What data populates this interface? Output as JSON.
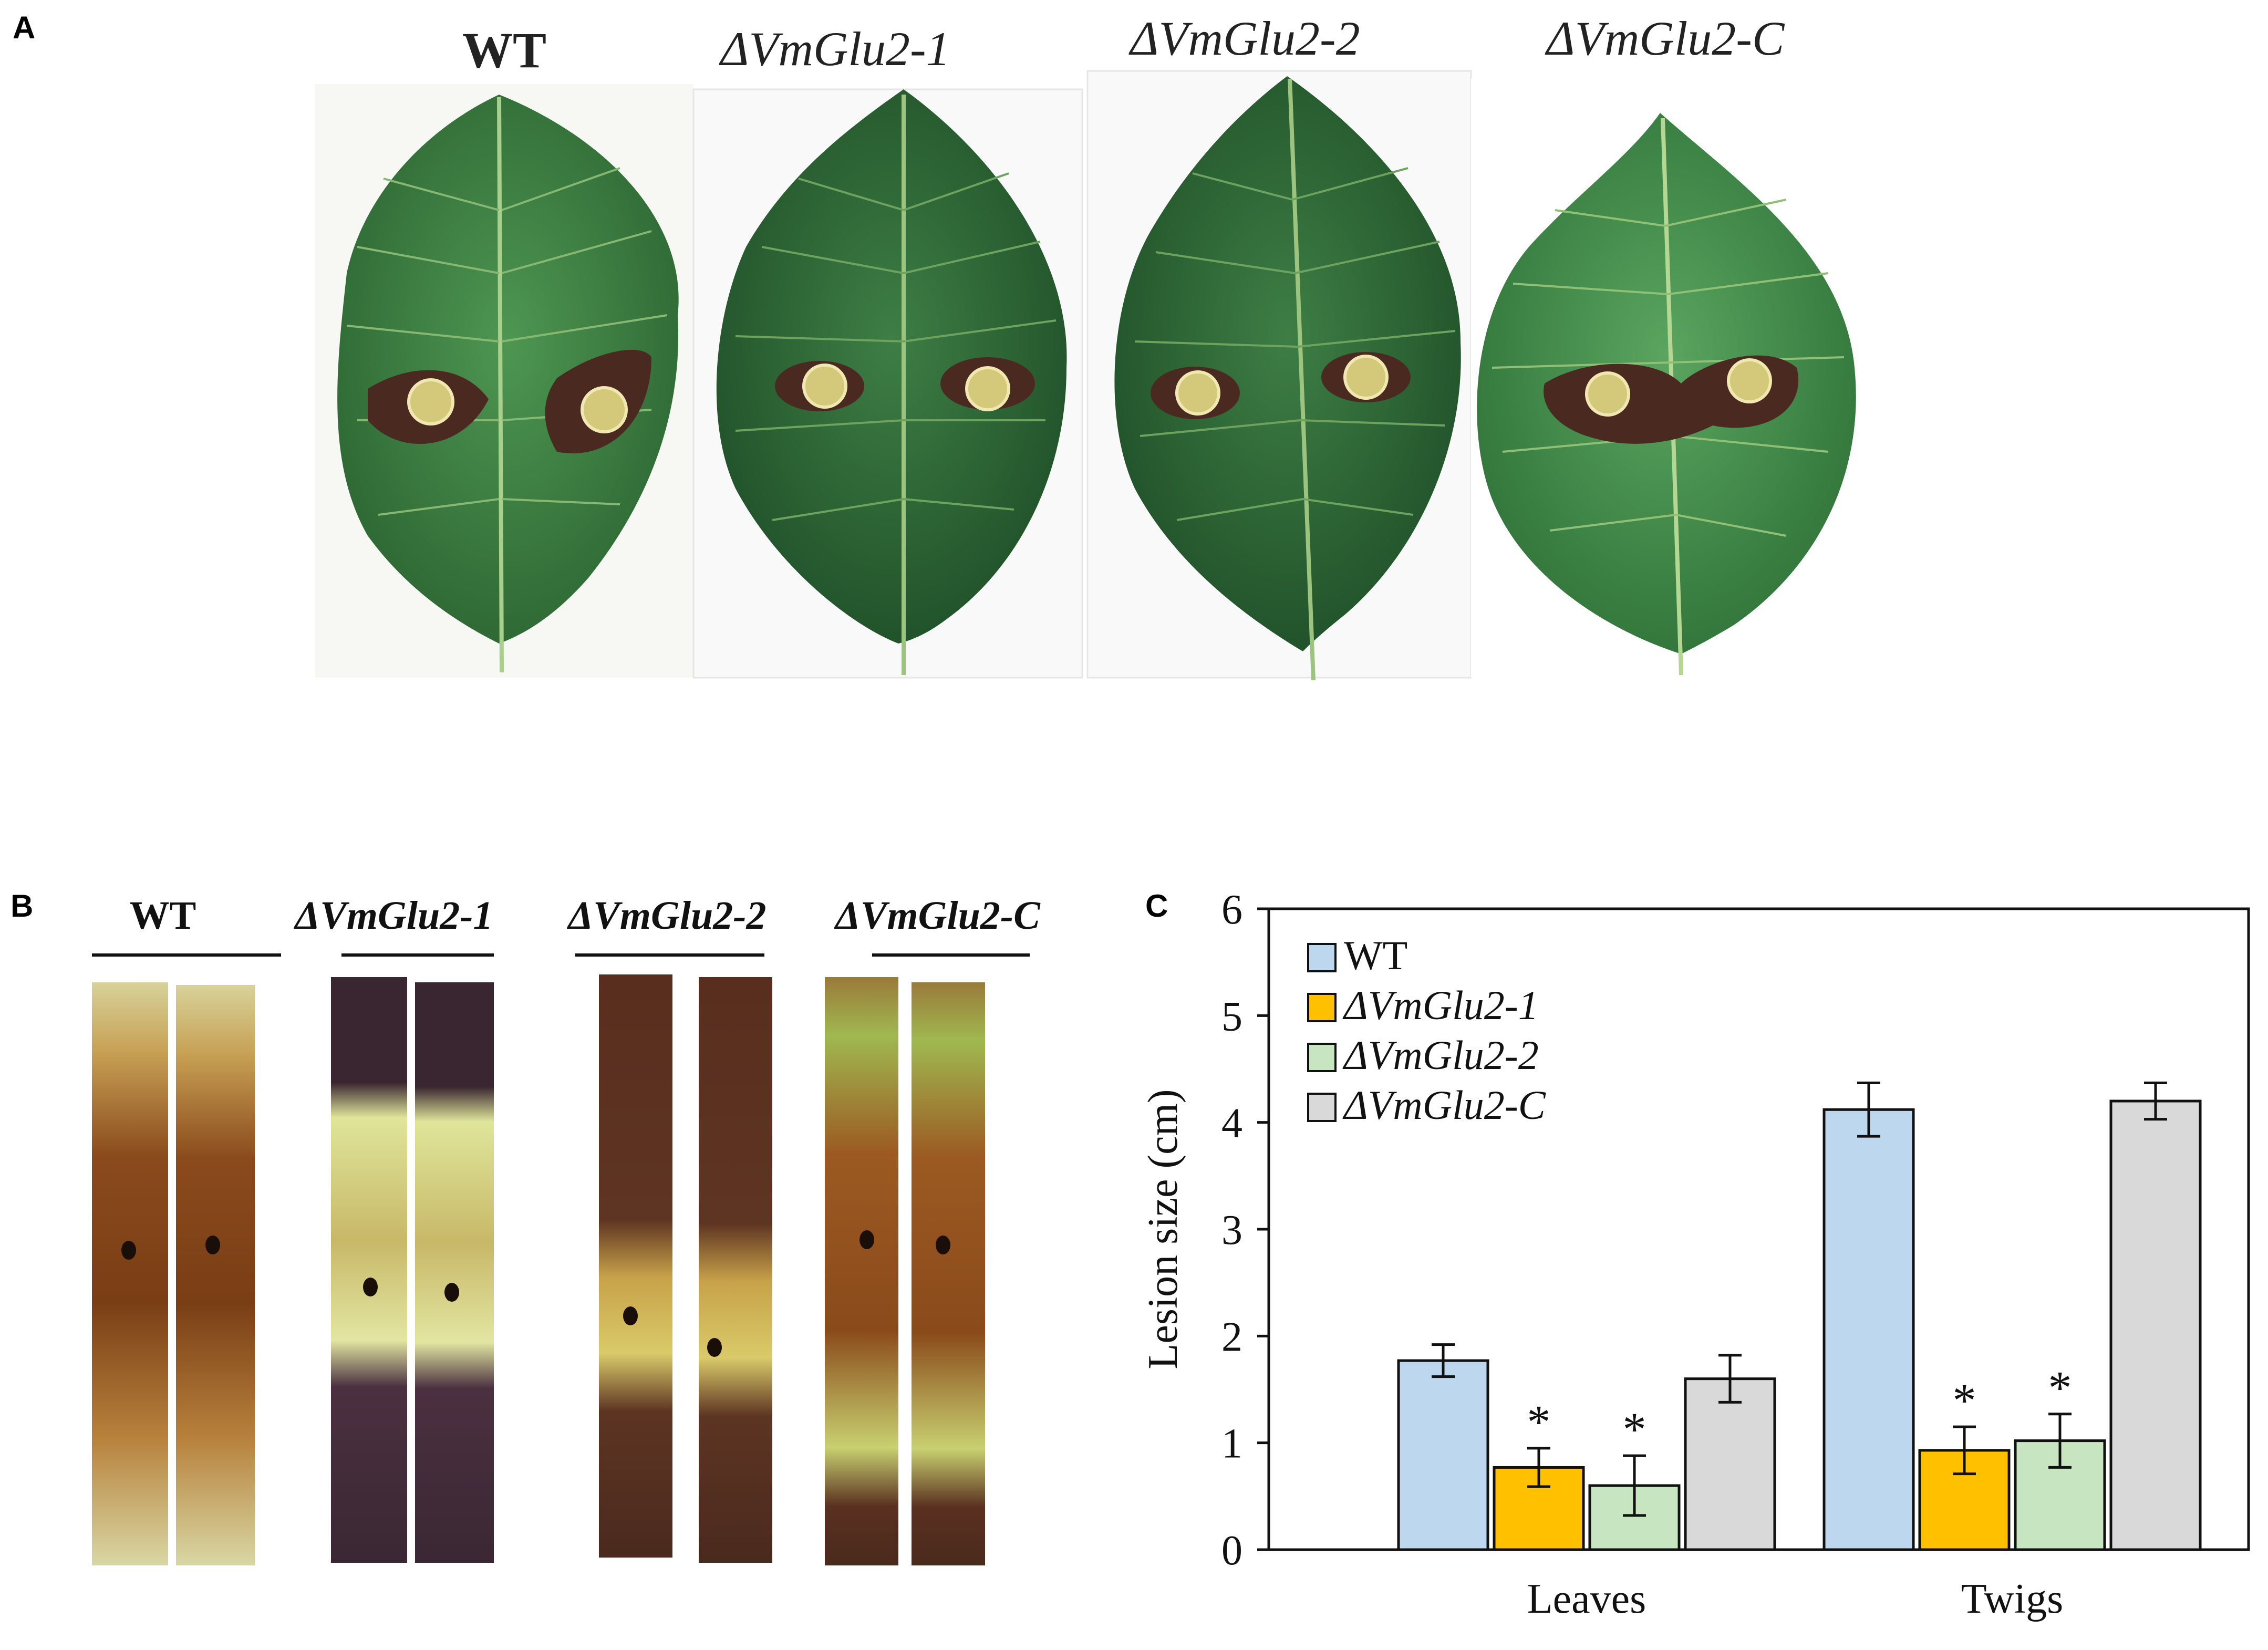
{
  "panels": {
    "a": {
      "letter": "A"
    },
    "b": {
      "letter": "B"
    },
    "c": {
      "letter": "C"
    }
  },
  "panel_a": {
    "labels": [
      "WT",
      "ΔVmGlu2-1",
      "ΔVmGlu2-2",
      "ΔVmGlu2-C"
    ]
  },
  "panel_b": {
    "labels": [
      "WT",
      "ΔVmGlu2-1",
      "ΔVmGlu2-2",
      "ΔVmGlu2-C"
    ]
  },
  "colors": {
    "leaf_dark": "#2f6b34",
    "leaf_mid": "#3f8a45",
    "lesion": "#4a2a20",
    "bar_wt": "#bdd7ee",
    "bar_glu2_1": "#ffc000",
    "bar_glu2_2": "#c6e5c0",
    "bar_glu2_c": "#d9d9d9"
  },
  "chart_data": {
    "type": "bar",
    "categories": [
      "Leaves",
      "Twigs"
    ],
    "ylabel": "Lesion size (cm)",
    "xlabel": "",
    "ylim": [
      0,
      6
    ],
    "yticks": [
      "0",
      "1",
      "2",
      "3",
      "4",
      "5",
      "6"
    ],
    "legend_position": "top-left",
    "grid": false,
    "series": [
      {
        "name": "WT",
        "values": [
          1.77,
          4.12
        ],
        "errors": [
          0.15,
          0.25
        ],
        "significant": [
          false,
          false
        ],
        "color": "#bdd7ee"
      },
      {
        "name": "ΔVmGlu2-1",
        "values": [
          0.77,
          0.93
        ],
        "errors": [
          0.18,
          0.22
        ],
        "significant": [
          true,
          true
        ],
        "color": "#ffc000"
      },
      {
        "name": "ΔVmGlu2-2",
        "values": [
          0.6,
          1.02
        ],
        "errors": [
          0.28,
          0.25
        ],
        "significant": [
          true,
          true
        ],
        "color": "#c6e5c0"
      },
      {
        "name": "ΔVmGlu2-C",
        "values": [
          1.6,
          4.2
        ],
        "errors": [
          0.22,
          0.17
        ],
        "significant": [
          false,
          false
        ],
        "color": "#d9d9d9"
      }
    ],
    "significance_marker": "*"
  }
}
